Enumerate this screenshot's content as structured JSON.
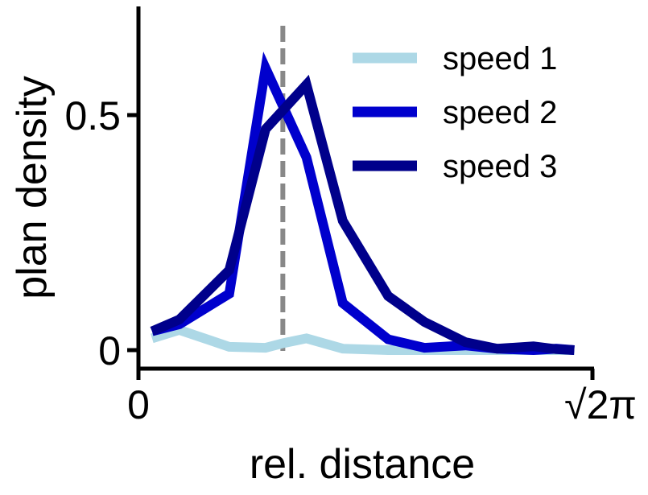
{
  "chart_data": {
    "type": "line",
    "xlabel": "rel. distance",
    "ylabel": "plan density",
    "xlim": [
      0,
      1
    ],
    "ylim": [
      -0.04,
      0.74
    ],
    "x_ticks": [
      {
        "value": 0,
        "label": "0"
      },
      {
        "value": 1,
        "label": "√2π"
      }
    ],
    "y_ticks": [
      {
        "value": 0,
        "label": "0"
      },
      {
        "value": 0.5,
        "label": "0.5"
      }
    ],
    "x": [
      0.03,
      0.09,
      0.2,
      0.28,
      0.37,
      0.45,
      0.55,
      0.63,
      0.72,
      0.79,
      0.87,
      0.92,
      0.96
    ],
    "vline": {
      "x": 0.318,
      "color": "#888888",
      "style": "dashed"
    },
    "legend_position": "top-right",
    "grid": false,
    "series": [
      {
        "name": "speed 1",
        "color": "#add8e6",
        "x": [
          0.03,
          0.09,
          0.2,
          0.28,
          0.32,
          0.37,
          0.45,
          0.55,
          0.63,
          0.72,
          0.79,
          0.87,
          0.92,
          0.96
        ],
        "values": [
          0.025,
          0.043,
          0.007,
          0.005,
          0.015,
          0.025,
          0.003,
          0.0,
          0.0,
          0.0,
          0.0,
          0.0,
          0.0,
          0.0
        ]
      },
      {
        "name": "speed 2",
        "color": "#0000cd",
        "x": [
          0.03,
          0.09,
          0.2,
          0.28,
          0.37,
          0.45,
          0.55,
          0.63,
          0.72,
          0.79,
          0.87,
          0.92,
          0.96
        ],
        "values": [
          0.04,
          0.055,
          0.12,
          0.6,
          0.41,
          0.1,
          0.023,
          0.005,
          0.01,
          0.003,
          0.0,
          0.003,
          0.0
        ]
      },
      {
        "name": "speed 3",
        "color": "#00008b",
        "x": [
          0.03,
          0.09,
          0.2,
          0.28,
          0.37,
          0.45,
          0.55,
          0.63,
          0.72,
          0.79,
          0.87,
          0.92,
          0.96
        ],
        "values": [
          0.04,
          0.065,
          0.17,
          0.47,
          0.565,
          0.275,
          0.115,
          0.06,
          0.017,
          0.003,
          0.008,
          0.002,
          0.0
        ]
      }
    ]
  }
}
